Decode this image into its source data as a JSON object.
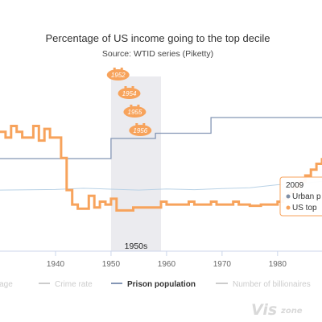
{
  "chart_data": {
    "type": "line",
    "title": "Percentage of US income going to the top decile",
    "subtitle": "Source: WTID series (Piketty)",
    "x_axis": {
      "range": [
        1930,
        1988
      ],
      "ticks": [
        1940,
        1950,
        1960,
        1970,
        1980
      ]
    },
    "plot_band": {
      "from": 1950,
      "to": 1959,
      "label": "1950s",
      "color": "#ebebef"
    },
    "flags": [
      {
        "label": "1952",
        "x": 1952
      },
      {
        "label": "1954",
        "x": 1954
      },
      {
        "label": "1955",
        "x": 1955
      },
      {
        "label": "1956",
        "x": 1956
      }
    ],
    "series": [
      {
        "name": "US top",
        "color": "#f7a35c",
        "type": "step",
        "y_range": [
          25,
          55
        ],
        "points": [
          [
            1930,
            45.5
          ],
          [
            1931,
            44.5
          ],
          [
            1932,
            46.5
          ],
          [
            1933,
            45.5
          ],
          [
            1934,
            44.5
          ],
          [
            1935,
            44.5
          ],
          [
            1936,
            46.5
          ],
          [
            1937,
            44
          ],
          [
            1938,
            46
          ],
          [
            1939,
            44.5
          ],
          [
            1940,
            44.5
          ],
          [
            1941,
            41
          ],
          [
            1942,
            35.5
          ],
          [
            1943,
            33
          ],
          [
            1944,
            32.3
          ],
          [
            1945,
            32.3
          ],
          [
            1946,
            34.5
          ],
          [
            1947,
            32.5
          ],
          [
            1948,
            33.5
          ],
          [
            1949,
            33
          ],
          [
            1950,
            34
          ],
          [
            1951,
            32
          ],
          [
            1952,
            32
          ],
          [
            1953,
            32
          ],
          [
            1954,
            32.5
          ],
          [
            1955,
            32.5
          ],
          [
            1956,
            32.5
          ],
          [
            1957,
            32.5
          ],
          [
            1958,
            32.5
          ],
          [
            1959,
            33.5
          ],
          [
            1960,
            33
          ],
          [
            1961,
            33
          ],
          [
            1962,
            33
          ],
          [
            1963,
            33
          ],
          [
            1964,
            33.5
          ],
          [
            1965,
            33
          ],
          [
            1966,
            33
          ],
          [
            1967,
            33
          ],
          [
            1968,
            33.5
          ],
          [
            1969,
            33
          ],
          [
            1970,
            33
          ],
          [
            1971,
            33
          ],
          [
            1972,
            33.5
          ],
          [
            1973,
            33
          ],
          [
            1974,
            33
          ],
          [
            1975,
            32.8
          ],
          [
            1976,
            32.8
          ],
          [
            1977,
            33
          ],
          [
            1978,
            33
          ],
          [
            1979,
            33
          ],
          [
            1980,
            33.5
          ],
          [
            1981,
            34
          ],
          [
            1982,
            35
          ],
          [
            1983,
            36
          ],
          [
            1984,
            37
          ],
          [
            1985,
            38
          ],
          [
            1986,
            39
          ],
          [
            1987,
            40
          ],
          [
            1988,
            41
          ]
        ]
      },
      {
        "name": "Prison population",
        "color": "#8496b5",
        "type": "step",
        "y_range": [
          0,
          100
        ],
        "points": [
          [
            1930,
            53
          ],
          [
            1950,
            53
          ],
          [
            1950,
            64.5
          ],
          [
            1958,
            64.5
          ],
          [
            1958,
            67.5
          ],
          [
            1968,
            67.5
          ],
          [
            1968,
            76.5
          ],
          [
            1988,
            76.5
          ]
        ]
      },
      {
        "name": "Urban population",
        "color": "#b9d2e6",
        "type": "line",
        "y_range": [
          0,
          100
        ],
        "points": [
          [
            1930,
            35
          ],
          [
            1940,
            35.3
          ],
          [
            1945,
            36
          ],
          [
            1950,
            35.5
          ],
          [
            1955,
            35
          ],
          [
            1960,
            35.6
          ],
          [
            1965,
            35.2
          ],
          [
            1970,
            35.8
          ],
          [
            1975,
            36.3
          ],
          [
            1980,
            38
          ],
          [
            1985,
            39
          ],
          [
            1988,
            40
          ]
        ]
      }
    ],
    "legend": {
      "placement": "bottom",
      "items": [
        {
          "label": "Wage",
          "active": false
        },
        {
          "label": "Crime rate",
          "active": false
        },
        {
          "label": "Prison population",
          "active": true
        },
        {
          "label": "Number of billionaires",
          "active": false
        }
      ]
    },
    "tooltip": {
      "header": "2009",
      "rows": [
        {
          "label": "Urban p",
          "color": "#7f8fa6"
        },
        {
          "label": "US top",
          "color": "#f7a35c"
        }
      ]
    }
  },
  "watermark": {
    "brand": "Vis",
    "suffix": "zone"
  }
}
